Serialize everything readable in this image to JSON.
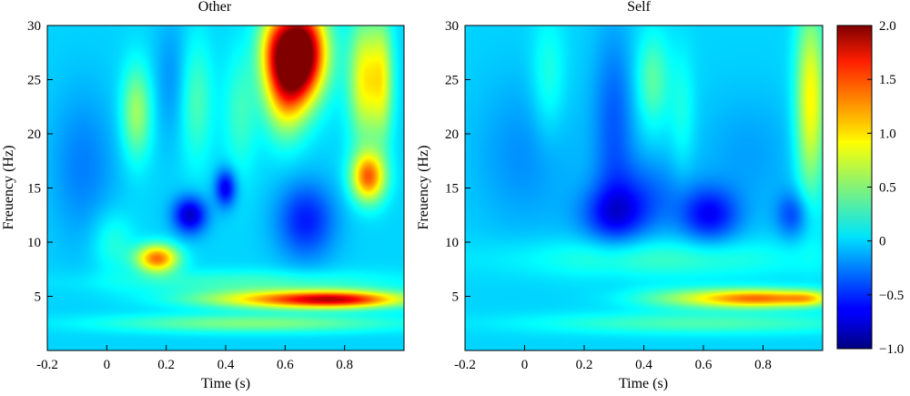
{
  "chart_data": [
    {
      "type": "heatmap",
      "title": "Other",
      "xlabel": "Time (s)",
      "ylabel": "Freuency (Hz)",
      "xlim": [
        -0.2,
        1.0
      ],
      "ylim": [
        0,
        30
      ],
      "xticks": [
        "-0.2",
        "0",
        "0.2",
        "0.4",
        "0.6",
        "0.8"
      ],
      "yticks": [
        "5",
        "10",
        "15",
        "20",
        "25",
        "30"
      ],
      "baseline": 0.0,
      "blobs": [
        {
          "t": 0.65,
          "f": 27.5,
          "st": 0.06,
          "sf": 3.0,
          "v": 2.4
        },
        {
          "t": 0.6,
          "f": 24.0,
          "st": 0.05,
          "sf": 3.0,
          "v": 0.9
        },
        {
          "t": 0.56,
          "f": 28.0,
          "st": 0.04,
          "sf": 2.5,
          "v": 0.6
        },
        {
          "t": 0.88,
          "f": 16.0,
          "st": 0.04,
          "sf": 1.6,
          "v": 1.3
        },
        {
          "t": 0.87,
          "f": 25.0,
          "st": 0.04,
          "sf": 4.0,
          "v": 0.9
        },
        {
          "t": 0.93,
          "f": 25.0,
          "st": 0.025,
          "sf": 4.0,
          "v": 0.6
        },
        {
          "t": 0.17,
          "f": 8.5,
          "st": 0.05,
          "sf": 0.9,
          "v": 1.3
        },
        {
          "t": 0.68,
          "f": 4.7,
          "st": 0.24,
          "sf": 0.6,
          "v": 1.3
        },
        {
          "t": 0.78,
          "f": 4.7,
          "st": 0.12,
          "sf": 0.5,
          "v": 0.6
        },
        {
          "t": 0.5,
          "f": 2.5,
          "st": 0.35,
          "sf": 0.6,
          "v": 0.5
        },
        {
          "t": 0.5,
          "f": 6.3,
          "st": 0.35,
          "sf": 0.8,
          "v": 0.3
        },
        {
          "t": 0.1,
          "f": 22.0,
          "st": 0.035,
          "sf": 3.0,
          "v": 0.6
        },
        {
          "t": 0.3,
          "f": 23.0,
          "st": 0.04,
          "sf": 4.0,
          "v": 0.35
        },
        {
          "t": 0.45,
          "f": 22.0,
          "st": 0.04,
          "sf": 4.0,
          "v": 0.3
        },
        {
          "t": 0.02,
          "f": 10.0,
          "st": 0.05,
          "sf": 2.0,
          "v": 0.25
        },
        {
          "t": 0.28,
          "f": 12.5,
          "st": 0.04,
          "sf": 1.2,
          "v": -0.8
        },
        {
          "t": 0.4,
          "f": 15.0,
          "st": 0.025,
          "sf": 1.2,
          "v": -0.7
        },
        {
          "t": 0.67,
          "f": 12.0,
          "st": 0.07,
          "sf": 2.5,
          "v": -0.55
        },
        {
          "t": -0.08,
          "f": 17.0,
          "st": 0.08,
          "sf": 5.0,
          "v": -0.25
        },
        {
          "t": 0.22,
          "f": 25.0,
          "st": 0.04,
          "sf": 4.0,
          "v": -0.2
        }
      ]
    },
    {
      "type": "heatmap",
      "title": "Self",
      "xlabel": "Time (s)",
      "ylabel": "Freuency (Hz)",
      "xlim": [
        -0.2,
        1.0
      ],
      "ylim": [
        0,
        30
      ],
      "xticks": [
        "-0.2",
        "0",
        "0.2",
        "0.4",
        "0.6",
        "0.8"
      ],
      "yticks": [
        "5",
        "10",
        "15",
        "20",
        "25",
        "30"
      ],
      "baseline": 0.0,
      "blobs": [
        {
          "t": 0.8,
          "f": 4.8,
          "st": 0.15,
          "sf": 0.6,
          "v": 1.2
        },
        {
          "t": 0.95,
          "f": 4.8,
          "st": 0.05,
          "sf": 0.5,
          "v": 0.4
        },
        {
          "t": 0.55,
          "f": 4.8,
          "st": 0.15,
          "sf": 0.7,
          "v": 0.4
        },
        {
          "t": 0.45,
          "f": 8.5,
          "st": 0.35,
          "sf": 1.3,
          "v": 0.3
        },
        {
          "t": 0.6,
          "f": 2.5,
          "st": 0.4,
          "sf": 0.7,
          "v": 0.35
        },
        {
          "t": 0.96,
          "f": 23.0,
          "st": 0.035,
          "sf": 6.0,
          "v": 0.9
        },
        {
          "t": 0.43,
          "f": 25.0,
          "st": 0.04,
          "sf": 3.0,
          "v": 0.4
        },
        {
          "t": 0.08,
          "f": 25.0,
          "st": 0.04,
          "sf": 4.0,
          "v": 0.25
        },
        {
          "t": 0.53,
          "f": 22.0,
          "st": 0.03,
          "sf": 4.0,
          "v": 0.2
        },
        {
          "t": 0.3,
          "f": 12.5,
          "st": 0.08,
          "sf": 1.8,
          "v": -0.5
        },
        {
          "t": 0.62,
          "f": 12.5,
          "st": 0.07,
          "sf": 1.8,
          "v": -0.6
        },
        {
          "t": 0.9,
          "f": 12.5,
          "st": 0.04,
          "sf": 1.5,
          "v": -0.4
        },
        {
          "t": 0.4,
          "f": 14.5,
          "st": 0.1,
          "sf": 2.5,
          "v": -0.3
        },
        {
          "t": 0.3,
          "f": 21.0,
          "st": 0.05,
          "sf": 6.0,
          "v": -0.35
        },
        {
          "t": 0.0,
          "f": 18.0,
          "st": 0.12,
          "sf": 5.0,
          "v": -0.2
        },
        {
          "t": 0.75,
          "f": 18.0,
          "st": 0.12,
          "sf": 4.0,
          "v": -0.15
        }
      ]
    }
  ],
  "colorbar": {
    "colormap": "jet",
    "min": -1.0,
    "max": 2.0,
    "ticks": [
      {
        "label": "2.0",
        "value": 2.0
      },
      {
        "label": "1.5",
        "value": 1.5
      },
      {
        "label": "1.0",
        "value": 1.0
      },
      {
        "label": "0.5",
        "value": 0.5
      },
      {
        "label": "0",
        "value": 0.0
      },
      {
        "label": "−0.5",
        "value": -0.5
      },
      {
        "label": "−1.0",
        "value": -1.0
      }
    ]
  }
}
